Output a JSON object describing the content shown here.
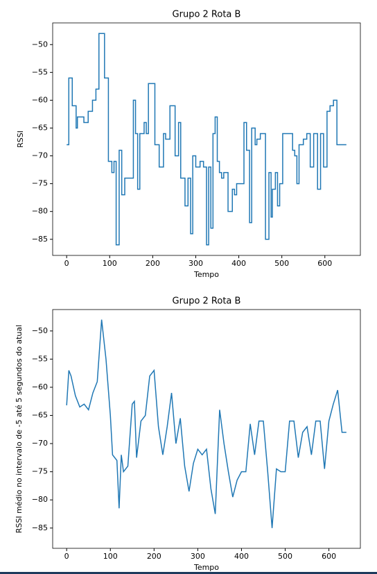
{
  "chart_data": [
    {
      "type": "line",
      "drawstyle": "steps-post",
      "title": "Grupo 2 Rota B",
      "xlabel": "Tempo",
      "ylabel": "RSSI",
      "color": "#1f77b4",
      "x": [
        0,
        5,
        13,
        22,
        25,
        40,
        50,
        60,
        68,
        75,
        88,
        97,
        105,
        110,
        115,
        122,
        128,
        135,
        150,
        155,
        160,
        165,
        170,
        180,
        185,
        190,
        205,
        215,
        225,
        230,
        240,
        252,
        260,
        265,
        275,
        282,
        288,
        293,
        300,
        310,
        318,
        325,
        330,
        335,
        340,
        345,
        350,
        355,
        360,
        365,
        375,
        385,
        390,
        395,
        412,
        418,
        425,
        430,
        438,
        442,
        450,
        462,
        470,
        475,
        478,
        485,
        490,
        495,
        502,
        525,
        530,
        535,
        540,
        550,
        558,
        566,
        574,
        583,
        590,
        597,
        605,
        612,
        620,
        628,
        650
      ],
      "values": [
        -68,
        -56,
        -61,
        -65,
        -63,
        -64,
        -62,
        -60,
        -58,
        -48,
        -56,
        -71,
        -73,
        -71,
        -86,
        -69,
        -77,
        -74,
        -74,
        -60,
        -66,
        -76,
        -66,
        -64,
        -66,
        -57,
        -68,
        -72,
        -66,
        -67,
        -61,
        -70,
        -64,
        -74,
        -79,
        -74,
        -84,
        -70,
        -72,
        -71,
        -72,
        -86,
        -72,
        -83,
        -66,
        -63,
        -71,
        -73,
        -74,
        -73,
        -80,
        -76,
        -77,
        -75,
        -64,
        -69,
        -82,
        -65,
        -68,
        -67,
        -66,
        -85,
        -73,
        -81,
        -76,
        -73,
        -79,
        -75,
        -66,
        -69,
        -70,
        -75,
        -68,
        -67,
        -66,
        -72,
        -66,
        -76,
        -66,
        -72,
        -62,
        -61,
        -60,
        -68,
        -68
      ],
      "xlim": [
        -32.5,
        682.5
      ],
      "ylim": [
        -87.9,
        -46.1
      ],
      "xticks": [
        0,
        100,
        200,
        300,
        400,
        500,
        600
      ],
      "yticks": [
        {
          "value": -85,
          "label": "−85"
        },
        {
          "value": -80,
          "label": "−80"
        },
        {
          "value": -75,
          "label": "−75"
        },
        {
          "value": -70,
          "label": "−70"
        },
        {
          "value": -65,
          "label": "−65"
        },
        {
          "value": -60,
          "label": "−60"
        },
        {
          "value": -55,
          "label": "−55"
        },
        {
          "value": -50,
          "label": "−50"
        }
      ]
    },
    {
      "type": "line",
      "title": "Grupo 2 Rota B",
      "xlabel": "Tempo",
      "ylabel": "RSSI médio no intervalo de -5 até 5 segundos do atual",
      "color": "#1f77b4",
      "x": [
        0,
        5,
        10,
        20,
        30,
        40,
        50,
        60,
        70,
        80,
        90,
        100,
        105,
        115,
        120,
        125,
        130,
        140,
        150,
        155,
        160,
        170,
        180,
        190,
        200,
        210,
        220,
        230,
        240,
        250,
        260,
        270,
        280,
        290,
        300,
        310,
        320,
        330,
        340,
        350,
        360,
        370,
        380,
        390,
        400,
        410,
        420,
        430,
        440,
        450,
        460,
        470,
        480,
        490,
        500,
        510,
        520,
        530,
        540,
        550,
        560,
        570,
        580,
        590,
        600,
        610,
        620,
        630,
        640
      ],
      "values": [
        -63.2,
        -57,
        -58,
        -61.5,
        -63.5,
        -63,
        -64,
        -61,
        -59,
        -48,
        -55,
        -65,
        -72,
        -73,
        -81.5,
        -72,
        -75,
        -74,
        -63,
        -62.5,
        -72.5,
        -66,
        -65,
        -58,
        -57,
        -67,
        -72,
        -67,
        -61,
        -70,
        -65.5,
        -74,
        -78.5,
        -73.5,
        -71,
        -72,
        -71,
        -78,
        -82.5,
        -64,
        -70,
        -75,
        -79.5,
        -76.5,
        -75,
        -75,
        -66.5,
        -72,
        -66,
        -66,
        -75,
        -85,
        -74.5,
        -75,
        -75,
        -66,
        -66,
        -72.5,
        -68,
        -67,
        -72,
        -66,
        -66,
        -74.5,
        -66,
        -63,
        -60.5,
        -68,
        -68
      ],
      "xlim": [
        -32,
        672
      ],
      "ylim": [
        -88.6,
        -46.2
      ],
      "xticks": [
        0,
        100,
        200,
        300,
        400,
        500,
        600
      ],
      "yticks": [
        {
          "value": -85,
          "label": "−85"
        },
        {
          "value": -80,
          "label": "−80"
        },
        {
          "value": -75,
          "label": "−75"
        },
        {
          "value": -70,
          "label": "−70"
        },
        {
          "value": -65,
          "label": "−65"
        },
        {
          "value": -60,
          "label": "−60"
        },
        {
          "value": -55,
          "label": "−55"
        },
        {
          "value": -50,
          "label": "−50"
        }
      ]
    }
  ]
}
